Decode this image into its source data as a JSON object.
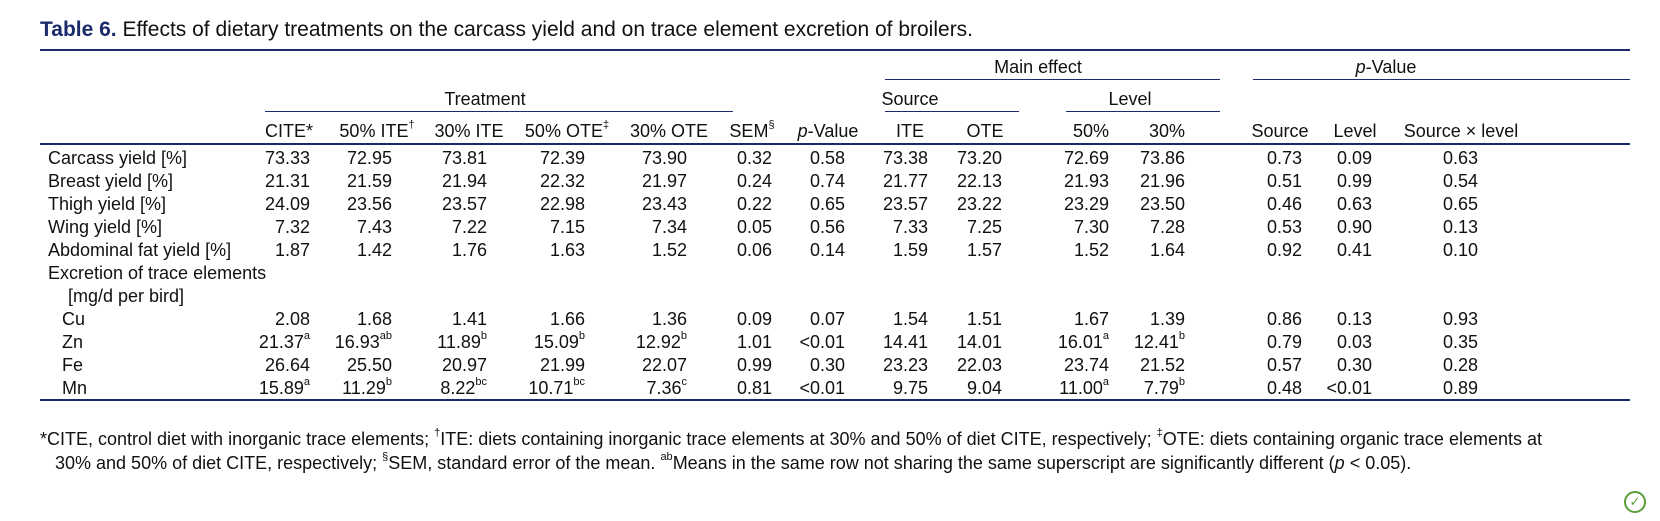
{
  "caption": {
    "label": "Table 6.",
    "text": " Effects of dietary treatments on the carcass yield and on trace element excretion of broilers."
  },
  "headers": {
    "main_effect": "Main effect",
    "pvalue_group_italic": "p",
    "pvalue_group_rest": "-Value",
    "treatment": "Treatment",
    "source": "Source",
    "level": "Level",
    "cols": {
      "cite": "CITE*",
      "ite50": "50% ITE",
      "ite50_sup": "†",
      "ite30": "30% ITE",
      "ote50": "50% OTE",
      "ote50_sup": "‡",
      "ote30": "30% OTE",
      "sem": "SEM",
      "sem_sup": "§",
      "pval_italic": "p",
      "pval_rest": "-Value",
      "ite": "ITE",
      "ote": "OTE",
      "l50": "50%",
      "l30": "30%",
      "p_source": "Source",
      "p_level": "Level",
      "p_interaction": "Source × level"
    }
  },
  "rows": [
    {
      "label": "Carcass yield [%]",
      "cells": [
        [
          "73.33",
          ""
        ],
        [
          "72.95",
          ""
        ],
        [
          "73.81",
          ""
        ],
        [
          "72.39",
          ""
        ],
        [
          "73.90",
          ""
        ],
        [
          "0.32",
          ""
        ],
        [
          "0.58",
          ""
        ],
        [
          "73.38",
          ""
        ],
        [
          "73.20",
          ""
        ],
        [
          "72.69",
          ""
        ],
        [
          "73.86",
          ""
        ],
        [
          "0.73",
          ""
        ],
        [
          "0.09",
          ""
        ],
        [
          "0.63",
          ""
        ]
      ]
    },
    {
      "label": "Breast yield [%]",
      "cells": [
        [
          "21.31",
          ""
        ],
        [
          "21.59",
          ""
        ],
        [
          "21.94",
          ""
        ],
        [
          "22.32",
          ""
        ],
        [
          "21.97",
          ""
        ],
        [
          "0.24",
          ""
        ],
        [
          "0.74",
          ""
        ],
        [
          "21.77",
          ""
        ],
        [
          "22.13",
          ""
        ],
        [
          "21.93",
          ""
        ],
        [
          "21.96",
          ""
        ],
        [
          "0.51",
          ""
        ],
        [
          "0.99",
          ""
        ],
        [
          "0.54",
          ""
        ]
      ]
    },
    {
      "label": "Thigh yield [%]",
      "cells": [
        [
          "24.09",
          ""
        ],
        [
          "23.56",
          ""
        ],
        [
          "23.57",
          ""
        ],
        [
          "22.98",
          ""
        ],
        [
          "23.43",
          ""
        ],
        [
          "0.22",
          ""
        ],
        [
          "0.65",
          ""
        ],
        [
          "23.57",
          ""
        ],
        [
          "23.22",
          ""
        ],
        [
          "23.29",
          ""
        ],
        [
          "23.50",
          ""
        ],
        [
          "0.46",
          ""
        ],
        [
          "0.63",
          ""
        ],
        [
          "0.65",
          ""
        ]
      ]
    },
    {
      "label": "Wing yield [%]",
      "cells": [
        [
          "7.32",
          ""
        ],
        [
          "7.43",
          ""
        ],
        [
          "7.22",
          ""
        ],
        [
          "7.15",
          ""
        ],
        [
          "7.34",
          ""
        ],
        [
          "0.05",
          ""
        ],
        [
          "0.56",
          ""
        ],
        [
          "7.33",
          ""
        ],
        [
          "7.25",
          ""
        ],
        [
          "7.30",
          ""
        ],
        [
          "7.28",
          ""
        ],
        [
          "0.53",
          ""
        ],
        [
          "0.90",
          ""
        ],
        [
          "0.13",
          ""
        ]
      ]
    },
    {
      "label": "Abdominal fat yield [%]",
      "cells": [
        [
          "1.87",
          ""
        ],
        [
          "1.42",
          ""
        ],
        [
          "1.76",
          ""
        ],
        [
          "1.63",
          ""
        ],
        [
          "1.52",
          ""
        ],
        [
          "0.06",
          ""
        ],
        [
          "0.14",
          ""
        ],
        [
          "1.59",
          ""
        ],
        [
          "1.57",
          ""
        ],
        [
          "1.52",
          ""
        ],
        [
          "1.64",
          ""
        ],
        [
          "0.92",
          ""
        ],
        [
          "0.41",
          ""
        ],
        [
          "0.10",
          ""
        ]
      ]
    },
    {
      "label": "Excretion of trace elements",
      "cells": []
    },
    {
      "label": "[mg/d per bird]",
      "cells": []
    },
    {
      "label": "Cu",
      "cells": [
        [
          "2.08",
          ""
        ],
        [
          "1.68",
          ""
        ],
        [
          "1.41",
          ""
        ],
        [
          "1.66",
          ""
        ],
        [
          "1.36",
          ""
        ],
        [
          "0.09",
          ""
        ],
        [
          "0.07",
          ""
        ],
        [
          "1.54",
          ""
        ],
        [
          "1.51",
          ""
        ],
        [
          "1.67",
          ""
        ],
        [
          "1.39",
          ""
        ],
        [
          "0.86",
          ""
        ],
        [
          "0.13",
          ""
        ],
        [
          "0.93",
          ""
        ]
      ]
    },
    {
      "label": "Zn",
      "cells": [
        [
          "21.37",
          "a"
        ],
        [
          "16.93",
          "ab"
        ],
        [
          "11.89",
          "b"
        ],
        [
          "15.09",
          "b"
        ],
        [
          "12.92",
          "b"
        ],
        [
          "1.01",
          ""
        ],
        [
          "<0.01",
          ""
        ],
        [
          "14.41",
          ""
        ],
        [
          "14.01",
          ""
        ],
        [
          "16.01",
          "a"
        ],
        [
          "12.41",
          "b"
        ],
        [
          "0.79",
          ""
        ],
        [
          "0.03",
          ""
        ],
        [
          "0.35",
          ""
        ]
      ]
    },
    {
      "label": "Fe",
      "cells": [
        [
          "26.64",
          ""
        ],
        [
          "25.50",
          ""
        ],
        [
          "20.97",
          ""
        ],
        [
          "21.99",
          ""
        ],
        [
          "22.07",
          ""
        ],
        [
          "0.99",
          ""
        ],
        [
          "0.30",
          ""
        ],
        [
          "23.23",
          ""
        ],
        [
          "22.03",
          ""
        ],
        [
          "23.74",
          ""
        ],
        [
          "21.52",
          ""
        ],
        [
          "0.57",
          ""
        ],
        [
          "0.30",
          ""
        ],
        [
          "0.28",
          ""
        ]
      ]
    },
    {
      "label": "Mn",
      "cells": [
        [
          "15.89",
          "a"
        ],
        [
          "11.29",
          "b"
        ],
        [
          "8.22",
          "bc"
        ],
        [
          "10.71",
          "bc"
        ],
        [
          "7.36",
          "c"
        ],
        [
          "0.81",
          ""
        ],
        [
          "<0.01",
          ""
        ],
        [
          "9.75",
          ""
        ],
        [
          "9.04",
          ""
        ],
        [
          "11.00",
          "a"
        ],
        [
          "7.79",
          "b"
        ],
        [
          "0.48",
          ""
        ],
        [
          "<0.01",
          ""
        ],
        [
          "0.89",
          ""
        ]
      ]
    }
  ],
  "footnote": {
    "p1": "*CITE, control diet with inorganic trace elements; ",
    "s1": "†",
    "p2": "ITE: diets containing inorganic trace elements at 30% and 50% of diet CITE, respectively; ",
    "s2": "‡",
    "p3": "OTE: diets containing organic trace elements at",
    "p4": "30% and 50% of diet CITE, respectively; ",
    "s3": "§",
    "p5": "SEM, standard error of the mean. ",
    "s4": "ab",
    "p6": "Means in the same row not sharing the same superscript are significantly different (",
    "p7": "p",
    "p8": " < 0.05)."
  },
  "colors": {
    "rule": "#1b2a6b",
    "caption_label": "#1b2a6b",
    "badge": "#5a9e3a"
  },
  "icons": {
    "badge": "open-access-icon"
  }
}
